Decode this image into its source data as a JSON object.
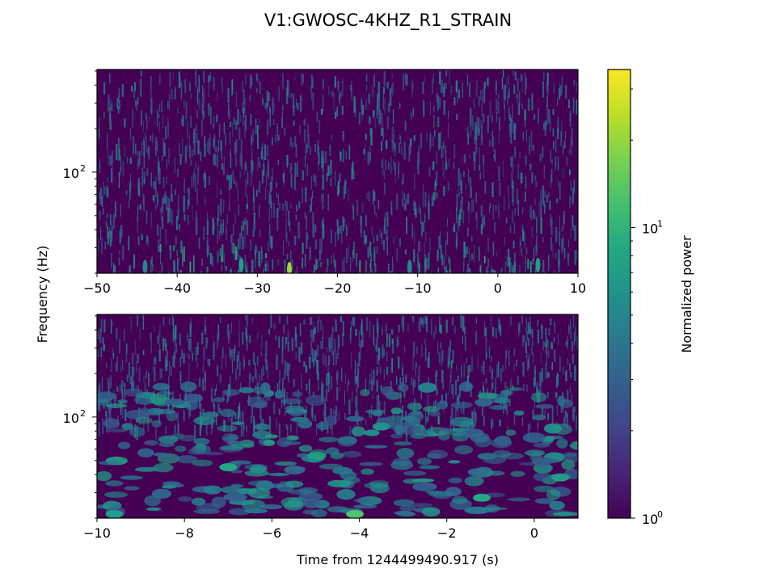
{
  "chart_data": {
    "type": "heatmap",
    "title": "V1:GWOSC-4KHZ_R1_STRAIN",
    "ylabel": "Frequency (Hz)",
    "xlabel": "Time from 1244499490.917 (s)",
    "colorbar": {
      "label": "Normalized power",
      "scale": "log",
      "range": [
        1,
        35
      ],
      "colormap": "viridis",
      "tick_labels": [
        {
          "value": 1,
          "base": "10",
          "exp": "0"
        },
        {
          "value": 10,
          "base": "10",
          "exp": "1"
        }
      ]
    },
    "panels": [
      {
        "name": "top-panel",
        "x_range": [
          -50,
          10
        ],
        "x_ticks": [
          -50,
          -40,
          -30,
          -20,
          -10,
          0,
          10
        ],
        "x_tick_labels": [
          "−50",
          "−40",
          "−30",
          "−20",
          "−10",
          "0",
          "10"
        ],
        "y_scale": "log",
        "y_range": [
          20,
          512
        ],
        "y_tick_labels": [
          {
            "value": 100,
            "base": "10",
            "exp": "2"
          }
        ],
        "texture": "fine"
      },
      {
        "name": "bottom-panel",
        "x_range": [
          -10,
          1
        ],
        "x_ticks": [
          -10,
          -8,
          -6,
          -4,
          -2,
          0
        ],
        "x_tick_labels": [
          "−10",
          "−8",
          "−6",
          "−4",
          "−2",
          "0"
        ],
        "y_scale": "log",
        "y_range": [
          20,
          512
        ],
        "y_tick_labels": [
          {
            "value": 100,
            "base": "10",
            "exp": "2"
          }
        ],
        "texture": "coarse"
      }
    ]
  }
}
